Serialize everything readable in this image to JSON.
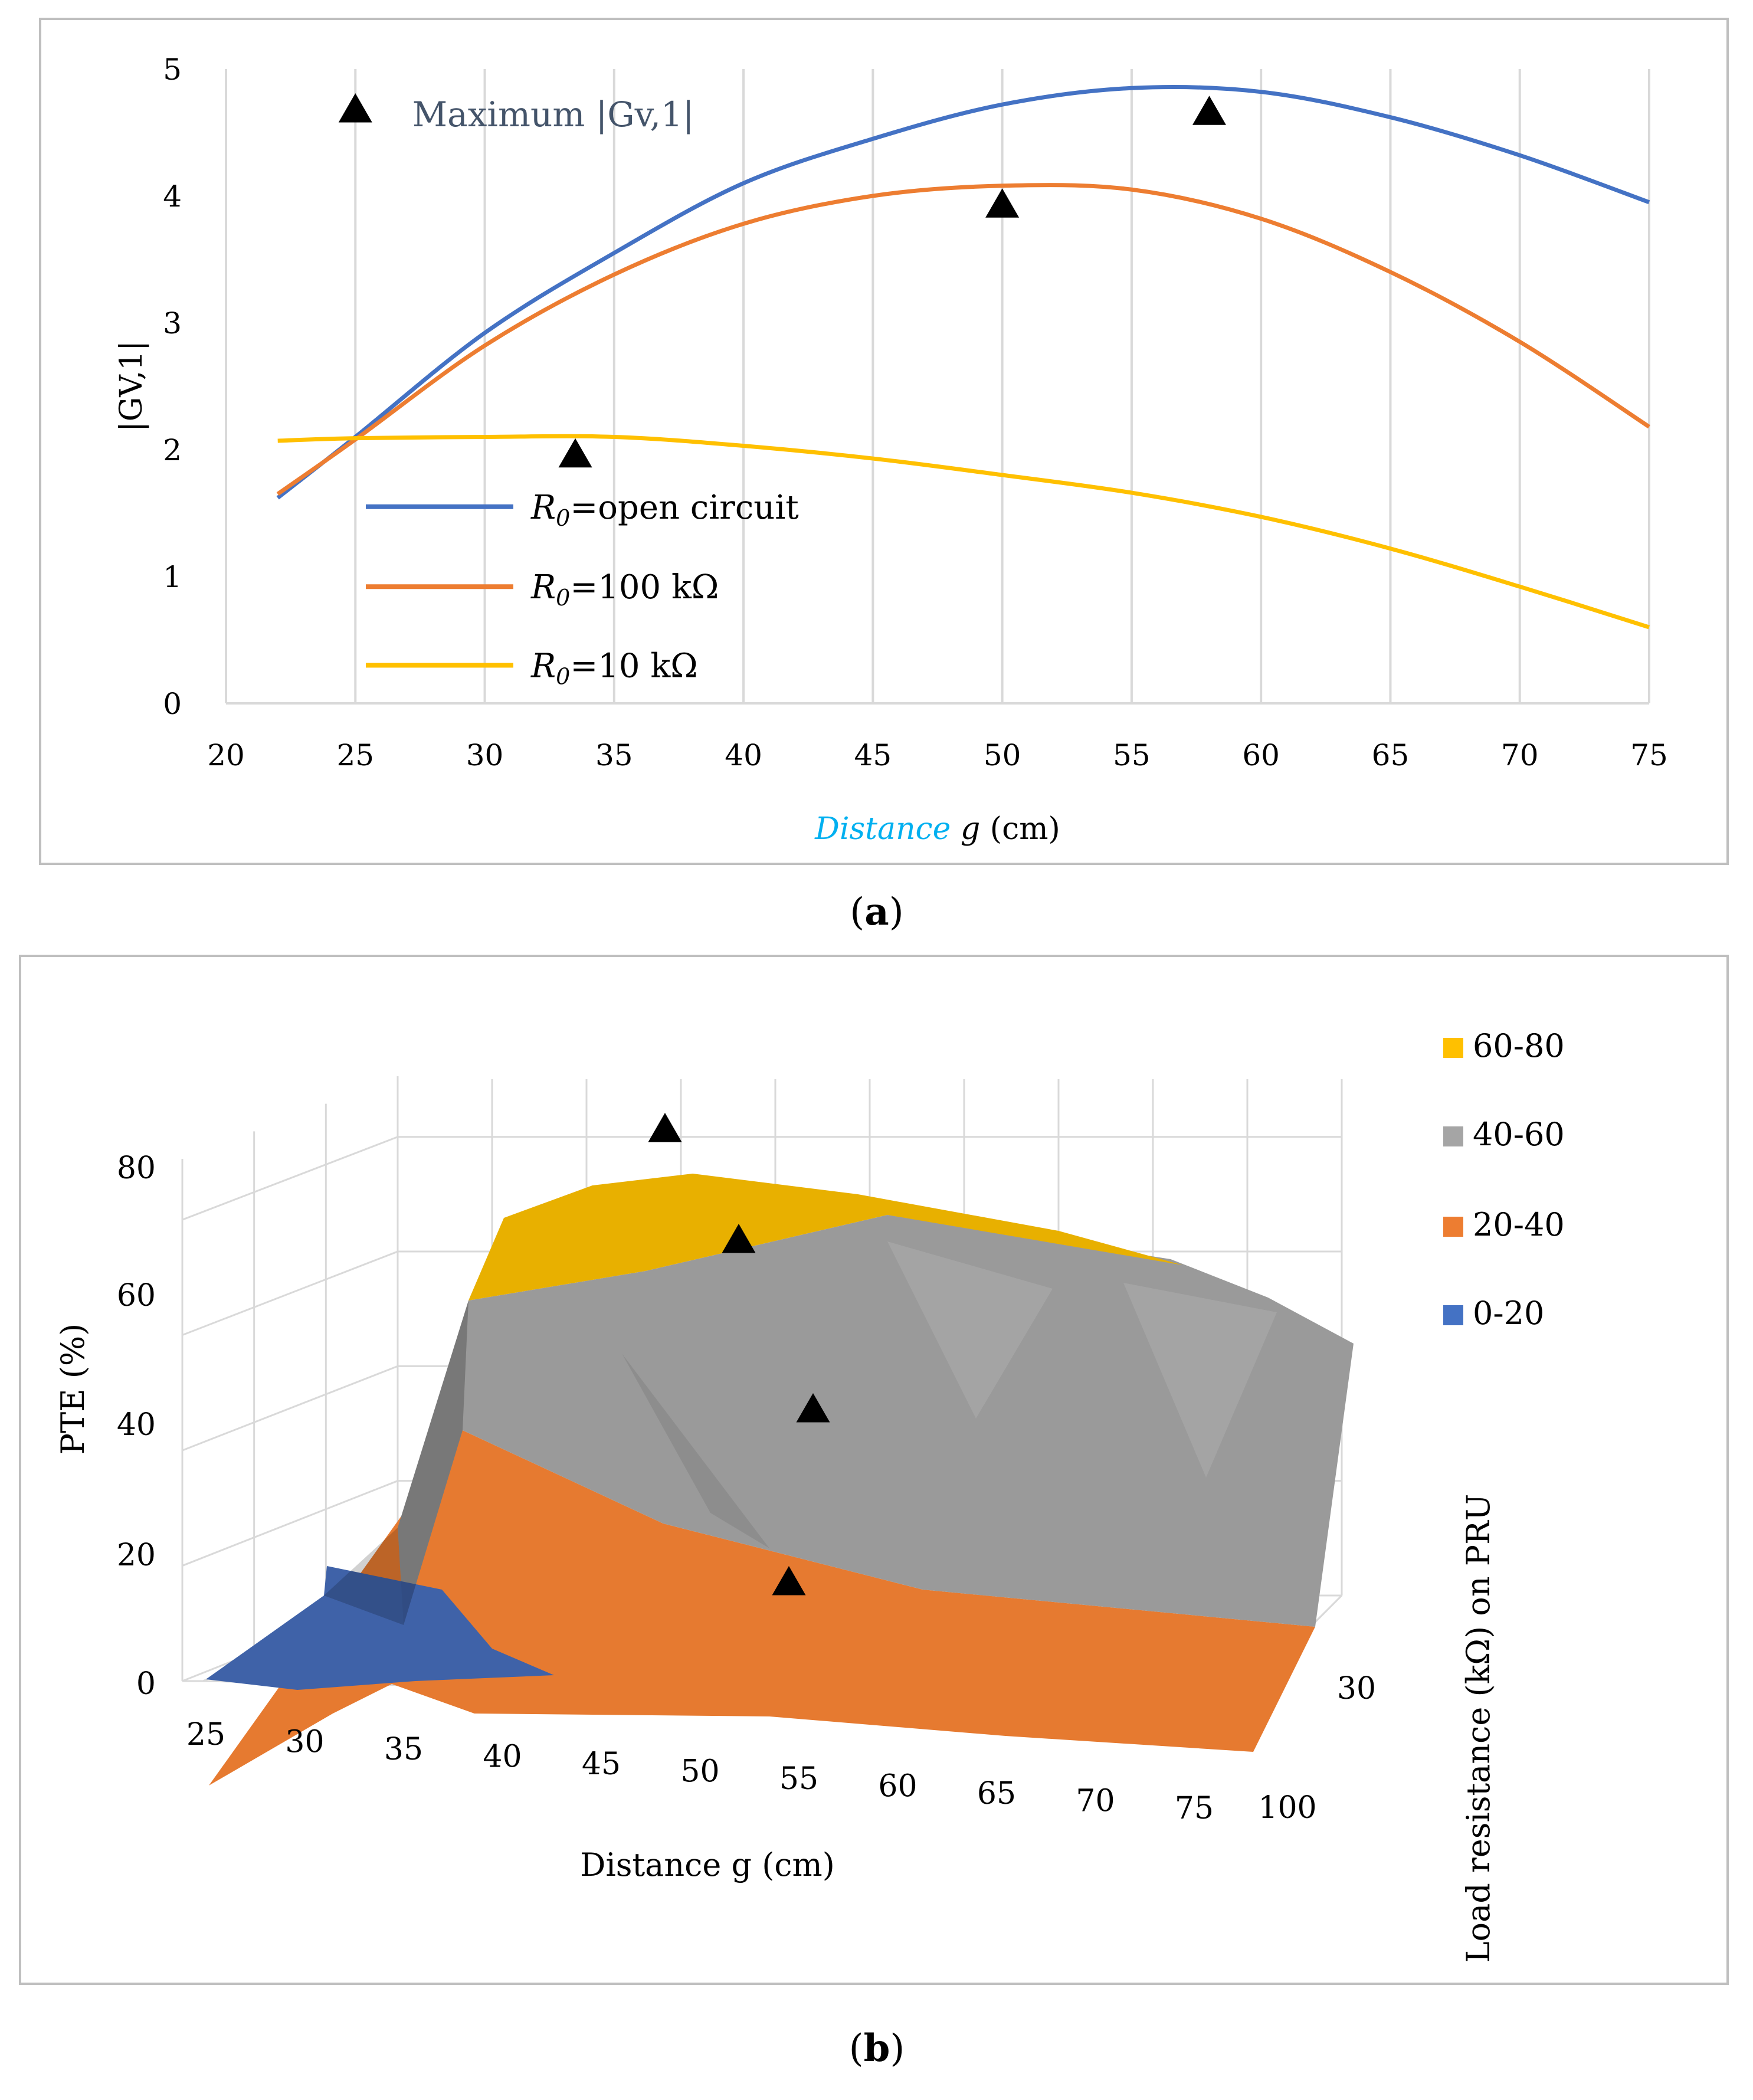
{
  "chart_data": [
    {
      "type": "line",
      "panel_label": "a",
      "title": "",
      "xlabel": "Distance g (cm)",
      "xlabel_italic_part": "Distance",
      "xlabel_rest": "g (cm)",
      "ylabel": "|GV,1|",
      "xlim": [
        20,
        75
      ],
      "ylim": [
        0,
        5
      ],
      "xticks": [
        20,
        25,
        30,
        35,
        40,
        45,
        50,
        55,
        60,
        65,
        70,
        75
      ],
      "yticks": [
        0,
        1,
        2,
        3,
        4,
        5
      ],
      "grid": "vertical",
      "legend": "lower-left",
      "x": [
        22,
        25,
        30,
        35,
        40,
        45,
        50,
        55,
        60,
        65,
        70,
        75
      ],
      "series": [
        {
          "name": "R0=open circuit",
          "label_sub": "R0",
          "label_rest": "=open circuit",
          "color": "#4472c4",
          "values": [
            1.62,
            2.1,
            2.92,
            3.55,
            4.1,
            4.45,
            4.72,
            4.85,
            4.82,
            4.62,
            4.32,
            3.95
          ]
        },
        {
          "name": "R0=100 kΩ",
          "label_sub": "R0",
          "label_rest": "=100 kΩ",
          "color": "#ed7d31",
          "values": [
            1.65,
            2.08,
            2.82,
            3.38,
            3.78,
            4.0,
            4.08,
            4.05,
            3.82,
            3.4,
            2.85,
            2.18
          ]
        },
        {
          "name": "R0=10 kΩ",
          "label_sub": "R0",
          "label_rest": "=10 kΩ",
          "color": "#ffc000",
          "values": [
            2.07,
            2.09,
            2.1,
            2.1,
            2.03,
            1.93,
            1.8,
            1.66,
            1.47,
            1.22,
            0.92,
            0.6
          ]
        }
      ],
      "markers_legend": "Maximum |Gv,1|",
      "markers": [
        {
          "x": 33.5,
          "y": 1.95
        },
        {
          "x": 50,
          "y": 3.92
        },
        {
          "x": 58,
          "y": 4.65
        }
      ]
    },
    {
      "type": "surface",
      "panel_label": "b",
      "xlabel": "Distance g (cm)",
      "ylabel": "PTE (%)",
      "zlabel": "Load resistance  (kΩ) on PRU",
      "x_categories": [
        "25",
        "30",
        "35",
        "40",
        "45",
        "50",
        "55",
        "60",
        "65",
        "70",
        "75"
      ],
      "depth_categories": [
        "30",
        "100"
      ],
      "yticks": [
        0,
        20,
        40,
        60,
        80
      ],
      "ylim": [
        0,
        80
      ],
      "legend_items": [
        {
          "label": "60-80",
          "color": "#ffc000"
        },
        {
          "label": "40-60",
          "color": "#a5a5a5"
        },
        {
          "label": "20-40",
          "color": "#ed7d31"
        },
        {
          "label": "0-20",
          "color": "#4472c4"
        }
      ],
      "bands": [
        {
          "range": "60-80",
          "color": "#e8b000"
        },
        {
          "range": "40-60",
          "color": "#9a9a9a"
        },
        {
          "range": "20-40",
          "color": "#e67a30"
        },
        {
          "range": "0-20",
          "color": "#3f62a8"
        }
      ]
    }
  ]
}
